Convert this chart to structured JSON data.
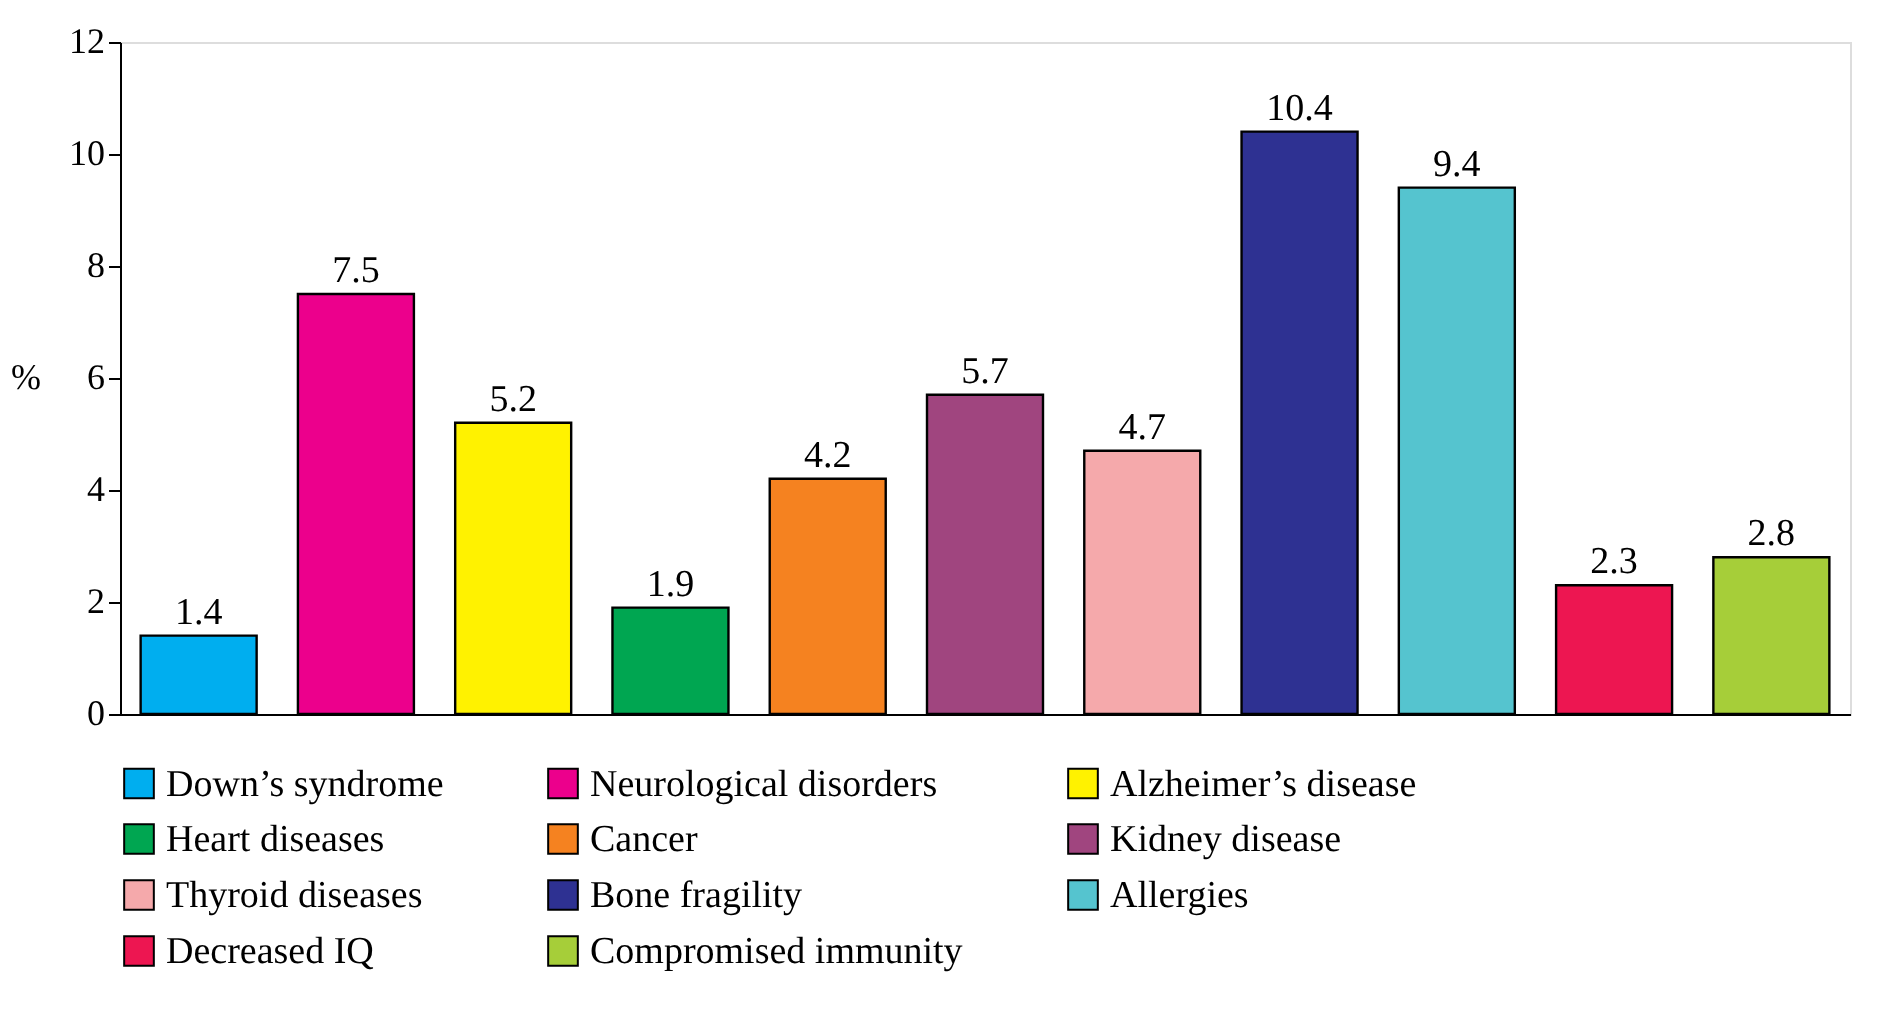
{
  "chart_data": {
    "type": "bar",
    "ylabel": "%",
    "categories": [
      null,
      null,
      null,
      null,
      null,
      null,
      null,
      null,
      null,
      null,
      null
    ],
    "series": [
      {
        "name": "Down’s syndrome",
        "color": "#00aeef",
        "values": [
          1.4,
          null,
          null,
          null,
          null,
          null,
          null,
          null,
          null,
          null,
          null
        ]
      },
      {
        "name": "Neurological disorders",
        "color": "#ec008c",
        "values": [
          null,
          7.5,
          null,
          null,
          null,
          null,
          null,
          null,
          null,
          null,
          null
        ]
      },
      {
        "name": "Alzheimer’s disease",
        "color": "#fff200",
        "values": [
          null,
          null,
          5.2,
          null,
          null,
          null,
          null,
          null,
          null,
          null,
          null
        ]
      },
      {
        "name": "Heart diseases",
        "color": "#00a651",
        "values": [
          null,
          null,
          null,
          1.9,
          null,
          null,
          null,
          null,
          null,
          null,
          null
        ]
      },
      {
        "name": "Cancer",
        "color": "#f58220",
        "values": [
          null,
          null,
          null,
          null,
          4.2,
          null,
          null,
          null,
          null,
          null,
          null
        ]
      },
      {
        "name": "Kidney disease",
        "color": "#a0457f",
        "values": [
          null,
          null,
          null,
          null,
          null,
          5.7,
          null,
          null,
          null,
          null,
          null
        ]
      },
      {
        "name": "Thyroid diseases",
        "color": "#f5a9ab",
        "values": [
          null,
          null,
          null,
          null,
          null,
          null,
          4.7,
          null,
          null,
          null,
          null
        ]
      },
      {
        "name": "Bone fragility",
        "color": "#2e3192",
        "values": [
          null,
          null,
          null,
          null,
          null,
          null,
          null,
          10.4,
          null,
          null,
          null
        ]
      },
      {
        "name": "Allergies",
        "color": "#55c4cf",
        "values": [
          null,
          null,
          null,
          null,
          null,
          null,
          null,
          null,
          9.4,
          null,
          null
        ]
      },
      {
        "name": "Decreased IQ",
        "color": "#ed1651",
        "values": [
          null,
          null,
          null,
          null,
          null,
          null,
          null,
          null,
          null,
          2.3,
          null
        ]
      },
      {
        "name": "Compromised immunity",
        "color": "#a6ce39",
        "values": [
          null,
          null,
          null,
          null,
          null,
          null,
          null,
          null,
          null,
          null,
          2.8
        ]
      }
    ],
    "ylim": [
      0,
      12
    ],
    "yticks": [
      0,
      2,
      4,
      6,
      8,
      10,
      12
    ],
    "grid": false,
    "legend": "bottom",
    "tick_labels": "y",
    "data_labels": true
  }
}
